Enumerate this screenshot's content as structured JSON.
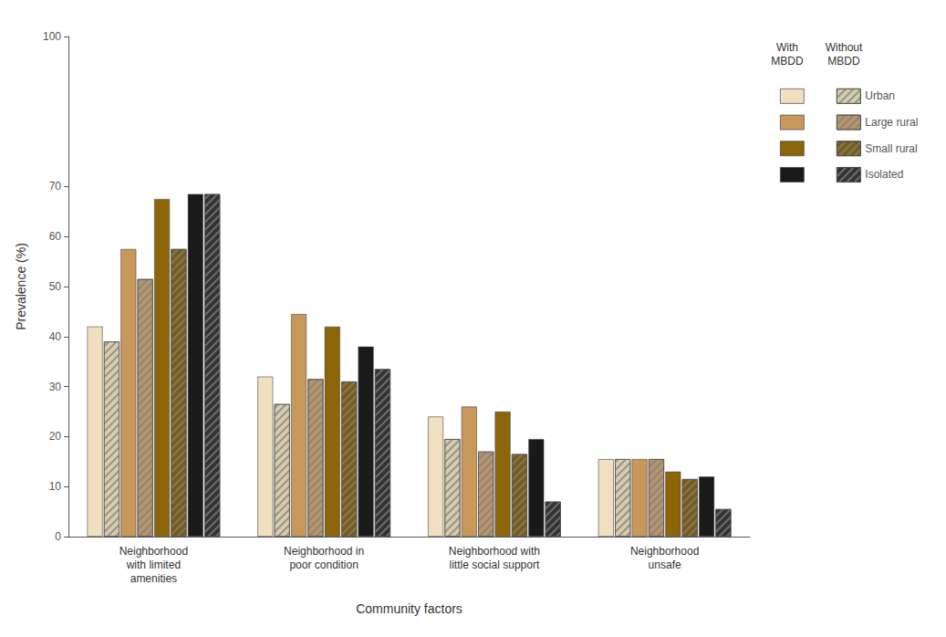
{
  "chart_data": {
    "type": "bar",
    "xlabel": "Community factors",
    "ylabel": "Prevalence (%)",
    "categories": [
      "Neighborhood\nwith limited\namenities",
      "Neighborhood in\npoor condition",
      "Neighborhood with\nlittle social support",
      "Neighborhood\nunsafe"
    ],
    "series_groups": [
      {
        "name": "With\nMBDD",
        "series": [
          {
            "name": "Urban",
            "color": "#f0e0c0",
            "values": [
              42,
              32,
              24,
              15.5
            ]
          },
          {
            "name": "Large rural",
            "color": "#c8975a",
            "values": [
              57.5,
              44.5,
              26,
              15.5
            ]
          },
          {
            "name": "Small rural",
            "color": "#8B6508",
            "values": [
              67.5,
              42,
              25,
              13
            ]
          },
          {
            "name": "Isolated",
            "color": "#1a1a1a",
            "values": [
              68.5,
              38,
              19.5,
              12
            ]
          }
        ]
      },
      {
        "name": "Without\nMBDD",
        "series": [
          {
            "name": "Urban",
            "color": "#d8ccaa",
            "values": [
              39,
              26.5,
              19.5,
              15.5
            ]
          },
          {
            "name": "Large rural",
            "color": "#b8946a",
            "values": [
              51.5,
              31.5,
              17,
              15.5
            ]
          },
          {
            "name": "Small rural",
            "color": "#7a5c18",
            "values": [
              57.5,
              31,
              16.5,
              11.5
            ]
          },
          {
            "name": "Isolated",
            "color": "#333333",
            "values": [
              68.5,
              33.5,
              7,
              5.5
            ]
          }
        ]
      }
    ],
    "ylim": [
      0,
      100
    ],
    "yticks": [
      0,
      10,
      20,
      30,
      40,
      50,
      60,
      70,
      100
    ],
    "grid": false,
    "legend": "upper right"
  }
}
